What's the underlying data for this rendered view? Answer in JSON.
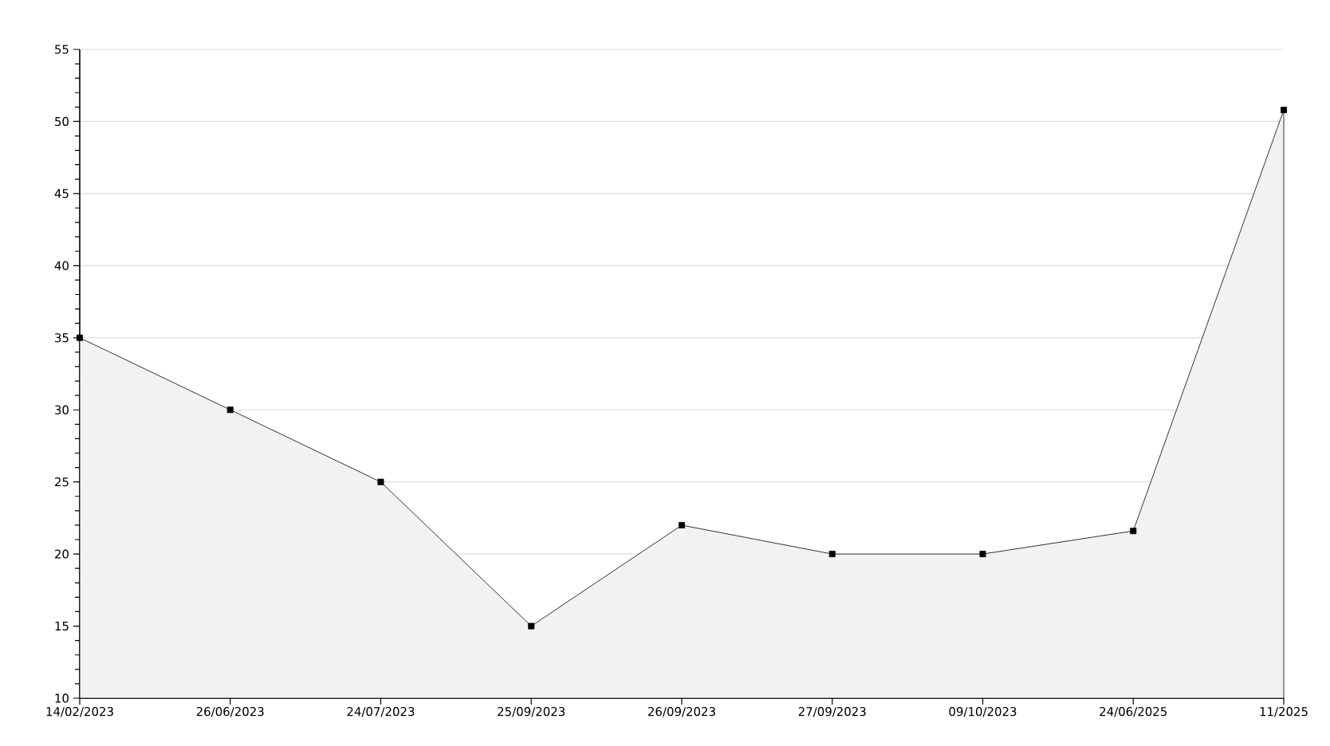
{
  "chart_data": {
    "type": "area",
    "categories": [
      "14/02/2023",
      "26/06/2023",
      "24/07/2023",
      "25/09/2023",
      "26/09/2023",
      "27/09/2023",
      "09/10/2023",
      "24/06/2025",
      "11/2025"
    ],
    "values": [
      35,
      30,
      25,
      15,
      22,
      20,
      20,
      21.6,
      50.8
    ],
    "color": "#000000",
    "ylim": [
      10,
      55
    ],
    "yticks": [
      10,
      15,
      20,
      25,
      30,
      35,
      40,
      45,
      50,
      55
    ],
    "grid": "y",
    "marker": "square"
  }
}
